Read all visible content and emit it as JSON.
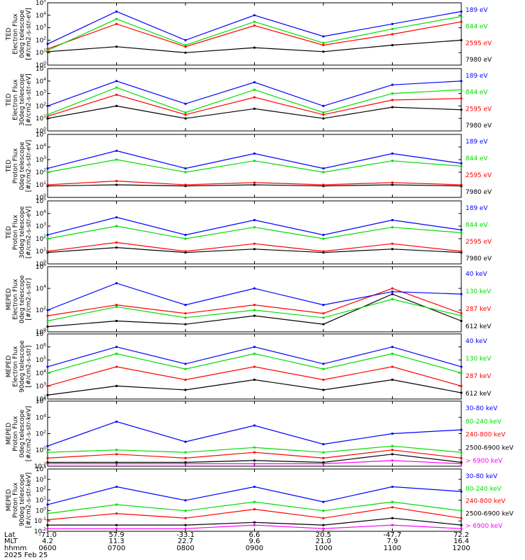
{
  "figure": {
    "date": "2025 Feb 25",
    "x_axis_rows": [
      {
        "label": "Lat",
        "values": [
          "-71.0",
          "57.9",
          "-33.1",
          "6.6",
          "20.5",
          "-47.7",
          "72.2"
        ]
      },
      {
        "label": "MLT",
        "values": [
          "4.2",
          "11.3",
          "22.7",
          "9.6",
          "21.0",
          "7.9",
          "16.4"
        ]
      },
      {
        "label": "hhmm",
        "values": [
          "0600",
          "0700",
          "0800",
          "0900",
          "1000",
          "1100",
          "1200"
        ]
      }
    ]
  },
  "colors": {
    "black": "#000000",
    "red": "#ff0000",
    "green": "#00dd00",
    "blue": "#0000ff",
    "magenta": "#ff00ff"
  },
  "chart_data": [
    {
      "type": "line",
      "ylabel_lines": [
        "TED",
        "Electron Flux",
        "0deg telescope",
        "[#/cm2-s-str-eV]"
      ],
      "y_ticks": [
        "10^0",
        "10^1",
        "10^2",
        "10^3",
        "10^4",
        "10^5"
      ],
      "ylim": [
        1,
        100000
      ],
      "y_scale": "log",
      "x": [
        "0600",
        "0700",
        "0800",
        "0900",
        "1000",
        "1100",
        "1200"
      ],
      "series": [
        {
          "name": "7980 eV",
          "color": "#000000",
          "values": [
            12,
            30,
            10,
            25,
            12,
            40,
            100
          ]
        },
        {
          "name": "2595 eV",
          "color": "#ff0000",
          "values": [
            20,
            2000,
            30,
            1500,
            40,
            300,
            3000
          ]
        },
        {
          "name": "844 eV",
          "color": "#00dd00",
          "values": [
            15,
            5000,
            40,
            3000,
            60,
            800,
            8000
          ]
        },
        {
          "name": "189 eV",
          "color": "#0000ff",
          "values": [
            50,
            20000,
            100,
            10000,
            200,
            2000,
            20000
          ]
        }
      ]
    },
    {
      "type": "line",
      "ylabel_lines": [
        "TED",
        "Electron Flux",
        "30deg telescope",
        "[#/cm2-s-str-eV]"
      ],
      "y_ticks": [
        "10^0",
        "10^1",
        "10^2",
        "10^3",
        "10^4",
        "10^5"
      ],
      "ylim": [
        1,
        100000
      ],
      "y_scale": "log",
      "x": [
        "0600",
        "0700",
        "0800",
        "0900",
        "1000",
        "1100",
        "1200"
      ],
      "series": [
        {
          "name": "7980 eV",
          "color": "#000000",
          "values": [
            10,
            100,
            10,
            60,
            10,
            80,
            50
          ]
        },
        {
          "name": "2595 eV",
          "color": "#ff0000",
          "values": [
            15,
            800,
            20,
            500,
            20,
            300,
            400
          ]
        },
        {
          "name": "844 eV",
          "color": "#00dd00",
          "values": [
            20,
            3000,
            30,
            2000,
            30,
            1000,
            2000
          ]
        },
        {
          "name": "189 eV",
          "color": "#0000ff",
          "values": [
            100,
            10000,
            150,
            8000,
            100,
            5000,
            10000
          ]
        }
      ]
    },
    {
      "type": "line",
      "ylabel_lines": [
        "TED",
        "Proton Flux",
        "0deg telescope",
        "[#/cm2-s-str-eV]"
      ],
      "y_ticks": [
        "10^0",
        "10^1",
        "10^2",
        "10^3",
        "10^4",
        "10^5"
      ],
      "ylim": [
        1,
        100000
      ],
      "y_scale": "log",
      "x": [
        "0600",
        "0700",
        "0800",
        "0900",
        "1000",
        "1100",
        "1200"
      ],
      "series": [
        {
          "name": "7980 eV",
          "color": "#000000",
          "values": [
            8,
            10,
            8,
            10,
            8,
            10,
            8
          ]
        },
        {
          "name": "2595 eV",
          "color": "#ff0000",
          "values": [
            10,
            20,
            10,
            15,
            10,
            15,
            10
          ]
        },
        {
          "name": "844 eV",
          "color": "#00dd00",
          "values": [
            100,
            1000,
            100,
            800,
            100,
            800,
            300
          ]
        },
        {
          "name": "189 eV",
          "color": "#0000ff",
          "values": [
            200,
            5000,
            200,
            3000,
            200,
            3000,
            500
          ]
        }
      ]
    },
    {
      "type": "line",
      "ylabel_lines": [
        "TED",
        "Proton Flux",
        "30deg telescope",
        "[#/cm2-s-str-eV]"
      ],
      "y_ticks": [
        "10^0",
        "10^1",
        "10^2",
        "10^3",
        "10^4",
        "10^5"
      ],
      "ylim": [
        1,
        100000
      ],
      "y_scale": "log",
      "x": [
        "0600",
        "0700",
        "0800",
        "0900",
        "1000",
        "1100",
        "1200"
      ],
      "series": [
        {
          "name": "7980 eV",
          "color": "#000000",
          "values": [
            8,
            20,
            8,
            15,
            8,
            15,
            8
          ]
        },
        {
          "name": "2595 eV",
          "color": "#ff0000",
          "values": [
            10,
            50,
            10,
            40,
            10,
            40,
            10
          ]
        },
        {
          "name": "844 eV",
          "color": "#00dd00",
          "values": [
            100,
            1000,
            100,
            800,
            100,
            800,
            300
          ]
        },
        {
          "name": "189 eV",
          "color": "#0000ff",
          "values": [
            200,
            5000,
            200,
            3000,
            200,
            3000,
            500
          ]
        }
      ]
    },
    {
      "type": "line",
      "ylabel_lines": [
        "MEPED",
        "Electron Flux",
        "0deg telescope",
        "[#/cm2-s-str]"
      ],
      "y_ticks": [
        "10^0",
        "10^2",
        "10^4",
        "10^6"
      ],
      "ylim": [
        1,
        1000000
      ],
      "y_scale": "log",
      "x": [
        "0600",
        "0700",
        "0800",
        "0900",
        "1000",
        "1100",
        "1200"
      ],
      "series": [
        {
          "name": "612 keV",
          "color": "#000000",
          "values": [
            3,
            10,
            5,
            30,
            5,
            3000,
            10
          ]
        },
        {
          "name": "287 keV",
          "color": "#ff0000",
          "values": [
            30,
            300,
            50,
            300,
            50,
            10000,
            50
          ]
        },
        {
          "name": "130 keV",
          "color": "#00dd00",
          "values": [
            10,
            200,
            20,
            100,
            20,
            1000,
            30
          ]
        },
        {
          "name": "40 keV",
          "color": "#0000ff",
          "values": [
            100,
            30000,
            300,
            10000,
            300,
            5000,
            3000
          ]
        }
      ]
    },
    {
      "type": "line",
      "ylabel_lines": [
        "MEPED",
        "Electron Flux",
        "90deg telescope",
        "[#/cm2-s-str]"
      ],
      "y_ticks": [
        "10^2",
        "10^3",
        "10^4",
        "10^5",
        "10^6",
        "10^7"
      ],
      "ylim": [
        100,
        10000000
      ],
      "y_scale": "log",
      "x": [
        "0600",
        "0700",
        "0800",
        "0900",
        "1000",
        "1100",
        "1200"
      ],
      "series": [
        {
          "name": "612 keV",
          "color": "#000000",
          "values": [
            200,
            1000,
            500,
            3000,
            500,
            3000,
            300
          ]
        },
        {
          "name": "287 keV",
          "color": "#ff0000",
          "values": [
            1000,
            30000,
            3000,
            30000,
            3000,
            30000,
            1000
          ]
        },
        {
          "name": "130 keV",
          "color": "#00dd00",
          "values": [
            10000,
            300000,
            20000,
            300000,
            20000,
            300000,
            10000
          ]
        },
        {
          "name": "40 keV",
          "color": "#0000ff",
          "values": [
            30000,
            1000000,
            50000,
            1000000,
            50000,
            1000000,
            30000
          ]
        }
      ]
    },
    {
      "type": "line",
      "ylabel_lines": [
        "MEPED",
        "Proton Flux",
        "0deg telescope",
        "[#/cm2-s-str-keV]"
      ],
      "y_ticks": [
        "10^-2",
        "10^0",
        "10^2",
        "10^4",
        "10^6"
      ],
      "ylim": [
        0.01,
        1000000
      ],
      "y_scale": "log",
      "x": [
        "0600",
        "0700",
        "0800",
        "0900",
        "1000",
        "1100",
        "1200"
      ],
      "series": [
        {
          "name": "> 6900 keV",
          "color": "#ff00ff",
          "values": [
            0.02,
            0.02,
            0.02,
            0.02,
            0.02,
            0.05,
            0.02
          ]
        },
        {
          "name": "2500-6900 keV",
          "color": "#000000",
          "values": [
            0.03,
            0.03,
            0.03,
            0.05,
            0.03,
            0.3,
            0.03
          ]
        },
        {
          "name": "240-800 keV",
          "color": "#ff0000",
          "values": [
            0.1,
            0.3,
            0.1,
            0.5,
            0.1,
            1,
            0.1
          ]
        },
        {
          "name": "80-240 keV",
          "color": "#00dd00",
          "values": [
            0.5,
            1,
            0.5,
            2,
            0.5,
            3,
            0.5
          ]
        },
        {
          "name": "30-80 keV",
          "color": "#0000ff",
          "values": [
            3,
            3000,
            10,
            1000,
            5,
            100,
            300
          ]
        }
      ]
    },
    {
      "type": "line",
      "ylabel_lines": [
        "MEPED",
        "Proton Flux",
        "90deg telescope",
        "[#/cm2-s-str-keV]"
      ],
      "y_ticks": [
        "10^-2",
        "10^-1",
        "10^0",
        "10^1",
        "10^2",
        "10^3",
        "10^4"
      ],
      "ylim": [
        0.01,
        100000
      ],
      "y_scale": "log",
      "x": [
        "0600",
        "0700",
        "0800",
        "0900",
        "1000",
        "1100",
        "1200"
      ],
      "series": [
        {
          "name": "> 6900 keV",
          "color": "#ff00ff",
          "values": [
            0.02,
            0.02,
            0.02,
            0.05,
            0.02,
            0.05,
            0.02
          ]
        },
        {
          "name": "2500-6900 keV",
          "color": "#000000",
          "values": [
            0.05,
            0.05,
            0.05,
            0.1,
            0.05,
            0.3,
            0.05
          ]
        },
        {
          "name": "240-800 keV",
          "color": "#ff0000",
          "values": [
            0.2,
            1,
            0.3,
            3,
            0.3,
            5,
            0.3
          ]
        },
        {
          "name": "80-240 keV",
          "color": "#00dd00",
          "values": [
            1,
            10,
            2,
            20,
            2,
            20,
            2
          ]
        },
        {
          "name": "30-80 keV",
          "color": "#0000ff",
          "values": [
            10,
            1000,
            30,
            1000,
            20,
            1000,
            300
          ]
        }
      ]
    }
  ]
}
